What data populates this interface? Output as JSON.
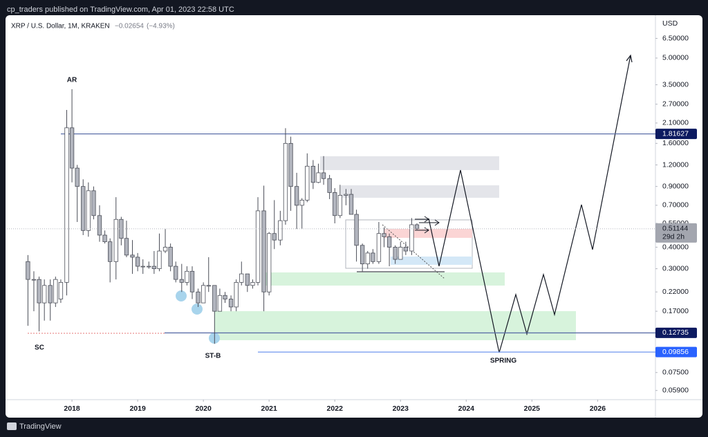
{
  "header": "cp_traders published on TradingView.com, Apr 01, 2023 22:58 UTC",
  "footer": "TradingView",
  "chart_data": {
    "type": "candlestick",
    "title": "XRP / U.S. Dollar, 1M, KRAKEN",
    "change": "−0.02654",
    "change_percent": "(−4.93%)",
    "y_axis_label": "USD",
    "log_scale": true,
    "grid": false,
    "up_color": "#ffffff",
    "down_color": "#b2b5be",
    "x": [
      2017.33,
      2017.42,
      2017.5,
      2017.58,
      2017.67,
      2017.75,
      2017.83,
      2017.92,
      2018,
      2018.08,
      2018.17,
      2018.25,
      2018.33,
      2018.42,
      2018.5,
      2018.58,
      2018.67,
      2018.75,
      2018.83,
      2018.92,
      2019,
      2019.08,
      2019.17,
      2019.25,
      2019.33,
      2019.42,
      2019.5,
      2019.58,
      2019.67,
      2019.75,
      2019.83,
      2019.92,
      2020,
      2020.08,
      2020.17,
      2020.25,
      2020.33,
      2020.42,
      2020.5,
      2020.58,
      2020.67,
      2020.75,
      2020.83,
      2020.92,
      2021,
      2021.08,
      2021.17,
      2021.25,
      2021.33,
      2021.42,
      2021.5,
      2021.58,
      2021.67,
      2021.75,
      2021.83,
      2021.92,
      2022,
      2022.08,
      2022.17,
      2022.25,
      2022.33,
      2022.42,
      2022.5,
      2022.58,
      2022.67,
      2022.75,
      2022.83,
      2022.92,
      2023,
      2023.08,
      2023.17,
      2023.25
    ],
    "open": [
      0.33,
      0.26,
      0.26,
      0.19,
      0.24,
      0.19,
      0.2,
      0.25,
      1.97,
      1.15,
      0.9,
      0.5,
      0.85,
      0.61,
      0.47,
      0.43,
      0.33,
      0.58,
      0.45,
      0.36,
      0.35,
      0.31,
      0.31,
      0.31,
      0.3,
      0.38,
      0.4,
      0.31,
      0.26,
      0.25,
      0.29,
      0.22,
      0.19,
      0.24,
      0.24,
      0.17,
      0.21,
      0.2,
      0.18,
      0.25,
      0.28,
      0.24,
      0.25,
      0.65,
      0.22,
      0.48,
      0.44,
      0.57,
      1.6,
      0.9,
      0.7,
      0.75,
      1.18,
      0.95,
      1.08,
      1.0,
      0.83,
      0.61,
      0.8,
      0.81,
      0.62,
      0.41,
      0.32,
      0.37,
      0.33,
      0.48,
      0.46,
      0.4,
      0.34,
      0.4,
      0.38,
      0.54
    ],
    "high": [
      0.36,
      0.29,
      0.27,
      0.26,
      0.26,
      0.27,
      0.26,
      2.5,
      3.3,
      1.2,
      0.99,
      0.95,
      0.9,
      0.7,
      0.5,
      0.45,
      0.78,
      0.6,
      0.57,
      0.44,
      0.37,
      0.34,
      0.33,
      0.38,
      0.48,
      0.51,
      0.42,
      0.33,
      0.32,
      0.31,
      0.31,
      0.23,
      0.25,
      0.35,
      0.24,
      0.23,
      0.22,
      0.21,
      0.26,
      0.33,
      0.28,
      0.26,
      0.78,
      0.91,
      0.49,
      0.75,
      0.65,
      1.96,
      1.75,
      1.08,
      0.77,
      1.4,
      1.28,
      1.22,
      1.35,
      1.05,
      0.88,
      0.92,
      0.87,
      0.87,
      0.66,
      0.42,
      0.38,
      0.39,
      0.56,
      0.52,
      0.48,
      0.41,
      0.43,
      0.43,
      0.59,
      0.55
    ],
    "low": [
      0.14,
      0.17,
      0.13,
      0.15,
      0.15,
      0.18,
      0.19,
      0.21,
      0.95,
      0.56,
      0.47,
      0.46,
      0.58,
      0.43,
      0.42,
      0.25,
      0.26,
      0.41,
      0.35,
      0.28,
      0.29,
      0.28,
      0.3,
      0.28,
      0.29,
      0.37,
      0.29,
      0.25,
      0.22,
      0.24,
      0.2,
      0.18,
      0.19,
      0.22,
      0.11,
      0.17,
      0.19,
      0.17,
      0.17,
      0.24,
      0.22,
      0.23,
      0.24,
      0.17,
      0.21,
      0.39,
      0.41,
      0.54,
      0.65,
      0.51,
      0.51,
      0.73,
      0.87,
      0.94,
      0.92,
      0.76,
      0.55,
      0.59,
      0.7,
      0.62,
      0.33,
      0.29,
      0.3,
      0.32,
      0.32,
      0.4,
      0.31,
      0.32,
      0.34,
      0.36,
      0.36,
      0.5
    ],
    "close": [
      0.26,
      0.26,
      0.19,
      0.24,
      0.19,
      0.26,
      0.25,
      1.97,
      1.15,
      0.9,
      0.5,
      0.85,
      0.61,
      0.47,
      0.43,
      0.33,
      0.58,
      0.45,
      0.36,
      0.35,
      0.31,
      0.31,
      0.31,
      0.3,
      0.38,
      0.4,
      0.31,
      0.26,
      0.25,
      0.29,
      0.22,
      0.19,
      0.24,
      0.24,
      0.17,
      0.21,
      0.2,
      0.18,
      0.25,
      0.28,
      0.24,
      0.25,
      0.65,
      0.22,
      0.48,
      0.44,
      0.57,
      1.6,
      0.9,
      0.7,
      0.75,
      1.18,
      0.95,
      1.08,
      1.0,
      0.83,
      0.61,
      0.8,
      0.81,
      0.62,
      0.41,
      0.32,
      0.37,
      0.33,
      0.48,
      0.46,
      0.4,
      0.34,
      0.4,
      0.38,
      0.54,
      0.51144
    ],
    "countdown": "29d 2h",
    "xlim": [
      2017.01,
      2026.88
    ],
    "xticks": [
      2018,
      2019,
      2020,
      2021,
      2022,
      2023,
      2024,
      2025,
      2026
    ],
    "ylim": [
      0.0522,
      8.86
    ],
    "yticks": [
      {
        "value": 6.5,
        "label": "6.50000"
      },
      {
        "value": 5,
        "label": "5.00000"
      },
      {
        "value": 3.5,
        "label": "3.50000"
      },
      {
        "value": 2.7,
        "label": "2.70000"
      },
      {
        "value": 2.1,
        "label": "2.10000"
      },
      {
        "value": 1.6,
        "label": "1.60000"
      },
      {
        "value": 1.2,
        "label": "1.20000"
      },
      {
        "value": 0.9,
        "label": "0.90000"
      },
      {
        "value": 0.7,
        "label": "0.70000"
      },
      {
        "value": 0.55,
        "label": "0.55000"
      },
      {
        "value": 0.4,
        "label": "0.40000"
      },
      {
        "value": 0.3,
        "label": "0.30000"
      },
      {
        "value": 0.22,
        "label": "0.22000"
      },
      {
        "value": 0.17,
        "label": "0.17000"
      },
      {
        "value": 0.075,
        "label": "0.07500"
      },
      {
        "value": 0.059,
        "label": "0.05900"
      }
    ],
    "price_lines": [
      {
        "value": 1.81627,
        "color": "#0c1a60"
      },
      {
        "value": 0.12735,
        "color": "#0c1a60"
      },
      {
        "value": 0.09856,
        "color": "#2962ff"
      }
    ],
    "annotations": [
      "AR",
      "SC",
      "ST-B",
      "SPRING"
    ]
  }
}
